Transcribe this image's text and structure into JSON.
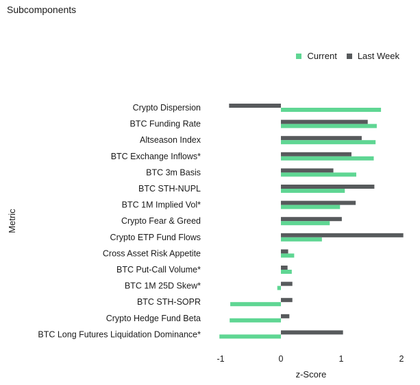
{
  "chart_data": {
    "type": "bar",
    "orientation": "horizontal",
    "title": "Subcomponents",
    "xlabel": "z-Score",
    "ylabel": "Metric",
    "xlim": [
      -1.1,
      2.05
    ],
    "xticks": [
      -1,
      0,
      1,
      2
    ],
    "grid": false,
    "legend_position": "top-right",
    "categories": [
      "Crypto Dispersion",
      "BTC Funding Rate",
      "Altseason Index",
      "BTC Exchange Inflows*",
      "BTC 3m Basis",
      "BTC STH-NUPL",
      "BTC 1M Implied Vol*",
      "Crypto Fear & Greed",
      "Crypto ETP Fund Flows",
      "Cross Asset Risk Appetite",
      "BTC Put-Call Volume*",
      "BTC 1M 25D Skew*",
      "BTC STH-SOPR",
      "Crypto Hedge Fund Beta",
      "BTC Long Futures Liquidation Dominance*"
    ],
    "series": [
      {
        "name": "Current",
        "color": "#5fd693",
        "values": [
          1.66,
          1.59,
          1.57,
          1.54,
          1.25,
          1.06,
          0.98,
          0.81,
          0.68,
          0.22,
          0.18,
          -0.06,
          -0.84,
          -0.85,
          -1.02
        ]
      },
      {
        "name": "Last Week",
        "color": "#575a5c",
        "values": [
          -0.86,
          1.44,
          1.34,
          1.17,
          0.87,
          1.55,
          1.24,
          1.01,
          2.03,
          0.12,
          0.11,
          0.19,
          0.19,
          0.14,
          1.03
        ]
      }
    ]
  }
}
